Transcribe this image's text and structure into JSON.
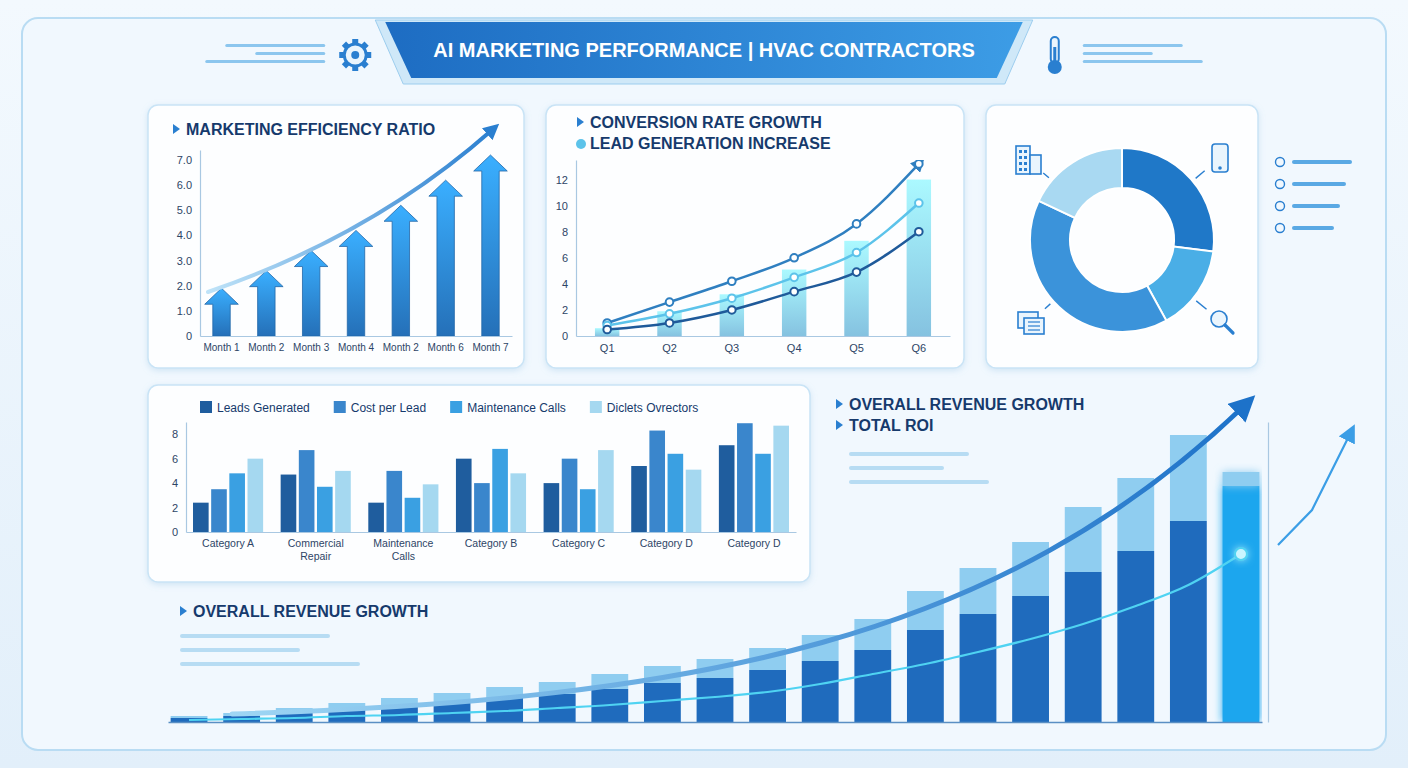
{
  "title": "AI MARKETING PERFORMANCE | HVAC CONTRACTORS",
  "chart_data": [
    {
      "type": "bar",
      "title": "MARKETING EFFICIENCY RATIO",
      "categories": [
        "Month 1",
        "Month 2",
        "Month 3",
        "Month 4",
        "Month 2",
        "Month 6",
        "Month 7"
      ],
      "values": [
        1.9,
        2.6,
        3.4,
        4.2,
        5.2,
        6.2,
        7.2
      ],
      "color": "#2a7fd0",
      "ylim": [
        0,
        7.4
      ],
      "yticks": [
        0,
        {
          "value": 1,
          "label": "1.0"
        },
        {
          "value": 2,
          "label": "2.0"
        },
        {
          "value": 3,
          "label": "3.0"
        },
        {
          "value": 4,
          "label": "4.0"
        },
        {
          "value": 5,
          "label": "5.0"
        },
        {
          "value": 6,
          "label": "6.0"
        },
        {
          "value": 7,
          "label": "7.0"
        }
      ],
      "grid": false
    },
    {
      "type": "line",
      "title": "CONVERSION RATE GROWTH",
      "categories": [
        "Q1",
        "Q2",
        "Q3",
        "Q4",
        "Q5",
        "Q6"
      ],
      "series": [
        {
          "type": "bar",
          "color": "#8fd0f1",
          "values": [
            0.6,
            1.9,
            3.2,
            5.1,
            7.3,
            12
          ]
        },
        {
          "type": "line",
          "color": "#2f7fc0",
          "marker": "circle",
          "values": [
            1,
            2.6,
            4.2,
            6,
            8.6,
            13.2
          ]
        },
        {
          "name": "LEAD GENERATION INCREASE",
          "type": "line",
          "color": "#5cc3ea",
          "marker": "circle",
          "values": [
            0.8,
            1.7,
            2.9,
            4.5,
            6.4,
            10.2
          ]
        },
        {
          "type": "line",
          "color": "#1f5a9a",
          "marker": "circle",
          "values": [
            0.5,
            1,
            2,
            3.4,
            4.9,
            8
          ]
        }
      ],
      "ylim": [
        0,
        13.5
      ],
      "yticks": [
        0,
        2,
        4,
        6,
        8,
        10,
        12
      ],
      "grid": false,
      "legend": "top-left"
    },
    {
      "type": "pie",
      "values": [
        27,
        15,
        40,
        18
      ],
      "colors": [
        "#1f78c8",
        "#4aaee6",
        "#3b93da",
        "#a9d9f2"
      ]
    },
    {
      "type": "bar",
      "categories": [
        "Category A",
        "Commercial Repair",
        "Maintenance Calls",
        "Category B",
        "Category C",
        "Category D",
        "Category D"
      ],
      "series": [
        {
          "name": "Leads Generated",
          "color": "#1f5d9e",
          "values": [
            2.4,
            4.7,
            2.4,
            6.0,
            4.0,
            5.4,
            7.1
          ]
        },
        {
          "name": "Cost per Lead",
          "color": "#3a86cc",
          "values": [
            3.5,
            6.7,
            5.0,
            4.0,
            6.0,
            8.3,
            8.9
          ]
        },
        {
          "name": "Maintenance Calls",
          "color": "#3aa0e2",
          "values": [
            4.8,
            3.7,
            2.8,
            6.8,
            3.5,
            6.4,
            6.4
          ]
        },
        {
          "name": "Diclets Ovrectors",
          "color": "#a5d8f0",
          "values": [
            6.0,
            5.0,
            3.9,
            4.8,
            6.7,
            5.1,
            8.7
          ]
        }
      ],
      "ylim": [
        0,
        9
      ],
      "yticks": [
        0,
        2,
        4,
        6,
        8
      ],
      "grid": false,
      "legend": "top"
    },
    {
      "type": "bar",
      "title": "OVERALL REVENUE GROWTH",
      "annotations": [
        "OVERALL REVENUE GROWTH",
        "TOTAL ROI"
      ],
      "categories": [
        null,
        null,
        null,
        null,
        null,
        null,
        null,
        null,
        null,
        null,
        null,
        null,
        null,
        null,
        null,
        null,
        null,
        null,
        null,
        null,
        null
      ],
      "series": [
        {
          "type": "bar",
          "colors": [
            "#1f6bbd",
            "#1f6bbd",
            "#1f6bbd",
            "#1f6bbd",
            "#1f6bbd",
            "#1f6bbd",
            "#1f6bbd",
            "#1f6bbd",
            "#1f6bbd",
            "#1f6bbd",
            "#1f6bbd",
            "#1f6bbd",
            "#1f6bbd",
            "#1f6bbd",
            "#1f6bbd",
            "#1f6bbd",
            "#1f6bbd",
            "#1f6bbd",
            "#1f6bbd",
            "#1f6bbd",
            "#1aa6ee"
          ],
          "values": [
            4,
            6,
            9,
            13,
            16,
            20,
            24,
            28,
            33,
            39,
            44,
            52,
            61,
            72,
            92,
            108,
            126,
            150,
            171,
            201,
            236
          ]
        },
        {
          "type": "bar",
          "color": "#8fcdf0",
          "values": [
            2,
            3,
            5,
            6,
            8,
            9,
            11,
            12,
            15,
            17,
            19,
            22,
            26,
            31,
            39,
            46,
            54,
            65,
            73,
            86,
            14
          ]
        },
        {
          "type": "line",
          "color": "#4fd3f2",
          "values": [
            2,
            3,
            4,
            6,
            7,
            9,
            11,
            14,
            17,
            21,
            25,
            30,
            38,
            48,
            58,
            70,
            83,
            98,
            116,
            137,
            168
          ]
        }
      ],
      "stacked": true,
      "ylim": [
        0,
        300
      ],
      "tick_labels": false
    }
  ]
}
